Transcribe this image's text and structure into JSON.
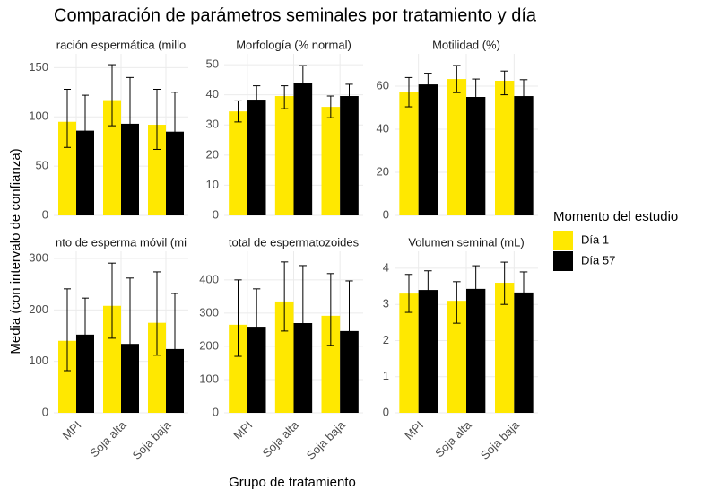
{
  "title": "Comparación de parámetros seminales por tratamiento y día",
  "y_label": "Media (con intervalo de confianza)",
  "x_label": "Grupo de tratamiento",
  "legend_title": "Momento del estudio",
  "legend_position": "right",
  "categories": [
    "MPI",
    "Soja alta",
    "Soja baja"
  ],
  "chart_data": [
    {
      "type": "bar",
      "title": "ración espermática (millo",
      "ylim": [
        0,
        164
      ],
      "yticks": [
        0,
        50,
        100,
        150
      ],
      "grid": true,
      "series": [
        {
          "name": "Día 1",
          "color": "#ffe800",
          "values": [
            95,
            117,
            92
          ],
          "lower": [
            69,
            91,
            67
          ],
          "upper": [
            128,
            153,
            128
          ]
        },
        {
          "name": "Día 57",
          "color": "#000000",
          "values": [
            86,
            93,
            85
          ],
          "lower": [
            48,
            48,
            43
          ],
          "upper": [
            122,
            140,
            125
          ]
        }
      ]
    },
    {
      "type": "bar",
      "title": "Morfología (% normal)",
      "ylim": [
        0,
        53.6
      ],
      "yticks": [
        0,
        10,
        20,
        30,
        40,
        50
      ],
      "grid": true,
      "series": [
        {
          "name": "Día 1",
          "color": "#ffe800",
          "values": [
            34.5,
            39.6,
            36
          ],
          "lower": [
            31,
            35.4,
            32.4
          ],
          "upper": [
            38,
            43,
            39.6
          ]
        },
        {
          "name": "Día 57",
          "color": "#000000",
          "values": [
            38.4,
            43.8,
            39.6
          ],
          "lower": [
            34,
            37.8,
            35.7
          ],
          "upper": [
            43,
            49.7,
            43.5
          ]
        }
      ]
    },
    {
      "type": "bar",
      "title": "Motilidad (%)",
      "ylim": [
        0,
        75
      ],
      "yticks": [
        0,
        20,
        40,
        60
      ],
      "grid": true,
      "series": [
        {
          "name": "Día 1",
          "color": "#ffe800",
          "values": [
            57.5,
            63.3,
            62.5
          ],
          "lower": [
            50.4,
            57,
            56
          ],
          "upper": [
            64,
            69.6,
            67
          ]
        },
        {
          "name": "Día 57",
          "color": "#000000",
          "values": [
            60.8,
            55,
            55.4
          ],
          "lower": [
            55,
            46.7,
            48.3
          ],
          "upper": [
            66,
            63.3,
            63
          ]
        }
      ]
    },
    {
      "type": "bar",
      "title": "nto de esperma móvil (mi",
      "ylim": [
        0,
        314
      ],
      "yticks": [
        0,
        100,
        200,
        300
      ],
      "grid": true,
      "series": [
        {
          "name": "Día 1",
          "color": "#ffe800",
          "values": [
            140,
            208,
            175
          ],
          "lower": [
            82,
            145,
            112
          ],
          "upper": [
            241,
            291,
            274
          ]
        },
        {
          "name": "Día 57",
          "color": "#000000",
          "values": [
            152,
            134,
            124
          ],
          "lower": [
            108,
            96,
            61
          ],
          "upper": [
            223,
            262,
            232
          ]
        }
      ]
    },
    {
      "type": "bar",
      "title": "total de espermatozoides",
      "ylim": [
        0,
        486
      ],
      "yticks": [
        0,
        100,
        200,
        300,
        400
      ],
      "grid": true,
      "series": [
        {
          "name": "Día 1",
          "color": "#ffe800",
          "values": [
            265,
            335,
            292
          ],
          "lower": [
            170,
            246,
            203
          ],
          "upper": [
            400,
            454,
            419
          ]
        },
        {
          "name": "Día 57",
          "color": "#000000",
          "values": [
            259,
            270,
            246
          ],
          "lower": [
            176,
            162,
            135
          ],
          "upper": [
            373,
            443,
            397
          ]
        }
      ]
    },
    {
      "type": "bar",
      "title": "Volumen seminal (mL)",
      "ylim": [
        0,
        4.47
      ],
      "yticks": [
        0,
        1,
        2,
        3,
        4
      ],
      "grid": true,
      "series": [
        {
          "name": "Día 1",
          "color": "#ffe800",
          "values": [
            3.3,
            3.1,
            3.6
          ],
          "lower": [
            2.78,
            2.48,
            3.0
          ],
          "upper": [
            3.83,
            3.63,
            4.17
          ]
        },
        {
          "name": "Día 57",
          "color": "#000000",
          "values": [
            3.4,
            3.43,
            3.33
          ],
          "lower": [
            2.85,
            2.73,
            2.73
          ],
          "upper": [
            3.93,
            4.07,
            3.9
          ]
        }
      ]
    }
  ]
}
